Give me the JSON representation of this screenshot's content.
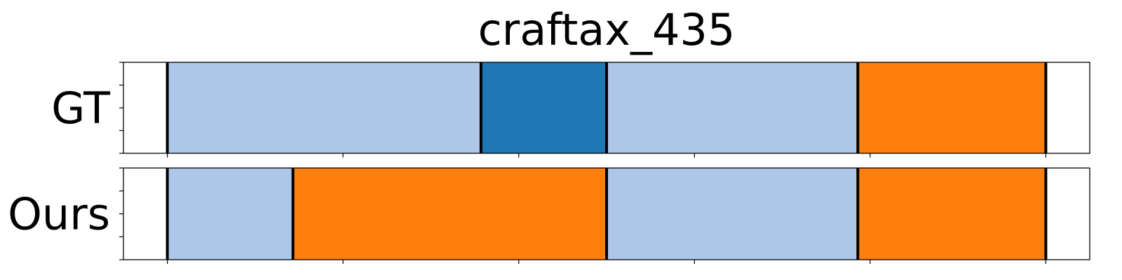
{
  "chart_data": {
    "type": "segmentation",
    "title": "craftax_435",
    "x_range": [
      -5,
      105
    ],
    "rows": [
      {
        "label": "GT",
        "segments": [
          {
            "start": 0,
            "end": 35.7,
            "color": "#aec7e8"
          },
          {
            "start": 35.7,
            "end": 50,
            "color": "#1f77b4"
          },
          {
            "start": 50,
            "end": 78.6,
            "color": "#aec7e8"
          },
          {
            "start": 78.6,
            "end": 100,
            "color": "#ff7f0e"
          }
        ],
        "boundaries": [
          0,
          35.7,
          50,
          78.6,
          100
        ]
      },
      {
        "label": "Ours",
        "segments": [
          {
            "start": 0,
            "end": 14.3,
            "color": "#aec7e8"
          },
          {
            "start": 14.3,
            "end": 50,
            "color": "#ff7f0e"
          },
          {
            "start": 50,
            "end": 78.6,
            "color": "#aec7e8"
          },
          {
            "start": 78.6,
            "end": 100,
            "color": "#ff7f0e"
          }
        ],
        "boundaries": [
          0,
          14.3,
          50,
          78.6,
          100
        ]
      }
    ],
    "x_ticks": [
      0,
      20,
      40,
      60,
      80,
      100
    ],
    "y_ticks": [
      0,
      0.25,
      0.5,
      0.75,
      1
    ],
    "tick_labels_visible": false,
    "grid": false,
    "legend": "none"
  }
}
